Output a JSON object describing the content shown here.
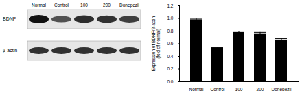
{
  "chart_data": {
    "type": "bar",
    "categories": [
      "Normal",
      "Control",
      "100",
      "200",
      "Donepezil"
    ],
    "values": [
      0.98,
      0.53,
      0.78,
      0.76,
      0.66
    ],
    "errors": [
      0.02,
      0.01,
      0.02,
      0.02,
      0.02
    ],
    "color": "#000000",
    "y_label": "Expression of BDNF/β-actin\n(fold of normal)",
    "ylim": [
      0,
      1.2
    ],
    "yticks": [
      0,
      0.2,
      0.4,
      0.6,
      0.8,
      1,
      1.2
    ],
    "grid": false
  },
  "blot": {
    "lanes": [
      "Normal",
      "Control",
      "100",
      "200",
      "Donepezil"
    ],
    "rows": [
      "BDNF",
      "β-actin"
    ]
  }
}
